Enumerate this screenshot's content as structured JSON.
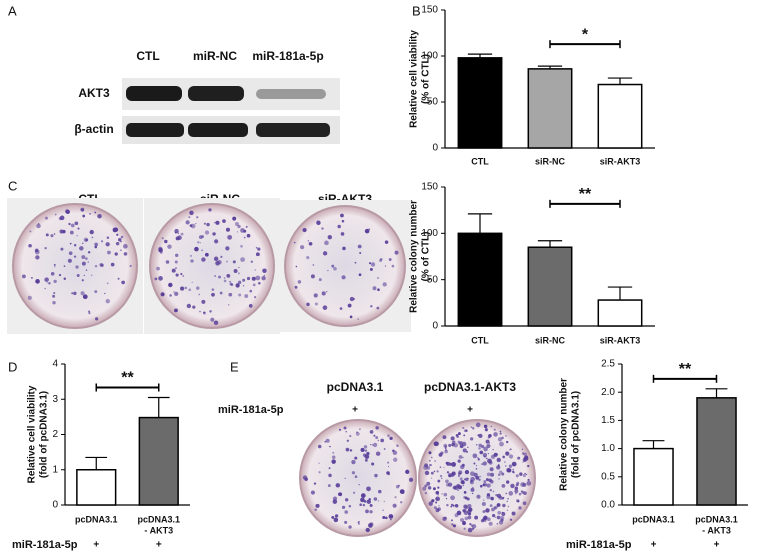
{
  "panel_labels": [
    "A",
    "B",
    "C",
    "D",
    "E"
  ],
  "blot": {
    "lanes": [
      "CTL",
      "miR-NC",
      "miR-181a-5p"
    ],
    "rows": [
      "AKT3",
      "β-actin"
    ]
  },
  "colony_c": {
    "labels": [
      "CTL",
      "siR-NC",
      "siR-AKT3"
    ]
  },
  "colony_e": {
    "labels": [
      "pcDNA3.1",
      "pcDNA3.1-AKT3"
    ],
    "treatment": "miR-181a-5p",
    "marks": [
      "+",
      "+"
    ]
  },
  "chart_data": [
    {
      "type": "bar",
      "ylabel": [
        "Relative cell viability",
        "(% of CTL)"
      ],
      "categories": [
        [
          "CTL"
        ],
        [
          "siR-NC"
        ],
        [
          "siR-AKT3"
        ]
      ],
      "values": [
        98,
        86,
        69
      ],
      "errors": [
        4,
        3,
        7
      ],
      "colors": [
        "#000000",
        "#a6a6a6",
        "#ffffff"
      ],
      "ylim": [
        0,
        150
      ],
      "yticks": [
        0,
        50,
        100,
        150
      ],
      "significance": {
        "between": [
          1,
          2
        ],
        "label": "*"
      }
    },
    {
      "type": "bar",
      "ylabel": [
        "Relative colony number",
        "(% of CTL)"
      ],
      "categories": [
        [
          "CTL"
        ],
        [
          "siR-NC"
        ],
        [
          "siR-AKT3"
        ]
      ],
      "values": [
        100,
        85,
        28
      ],
      "errors": [
        21,
        7,
        14
      ],
      "colors": [
        "#000000",
        "#6b6b6b",
        "#ffffff"
      ],
      "ylim": [
        0,
        150
      ],
      "yticks": [
        0,
        50,
        100,
        150
      ],
      "significance": {
        "between": [
          1,
          2
        ],
        "label": "**"
      }
    },
    {
      "type": "bar",
      "ylabel": [
        "Relative cell viability",
        "(fold of pcDNA3.1)"
      ],
      "categories": [
        [
          "pcDNA3.1"
        ],
        [
          "pcDNA3.1",
          "- AKT3"
        ]
      ],
      "values": [
        1.0,
        2.48
      ],
      "errors": [
        0.35,
        0.57
      ],
      "colors": [
        "#ffffff",
        "#6b6b6b"
      ],
      "ylim": [
        0,
        4
      ],
      "yticks": [
        0,
        1,
        2,
        3,
        4
      ],
      "significance": {
        "between": [
          0,
          1
        ],
        "label": "**"
      },
      "treatment": "miR-181a-5p",
      "treatment_marks": [
        "+",
        "+"
      ]
    },
    {
      "type": "bar",
      "ylabel": [
        "Relative colony number",
        "(fold of pcDNA3.1)"
      ],
      "categories": [
        [
          "pcDNA3.1"
        ],
        [
          "pcDNA3.1",
          "- AKT3"
        ]
      ],
      "values": [
        1.0,
        1.9
      ],
      "errors": [
        0.14,
        0.16
      ],
      "colors": [
        "#ffffff",
        "#6b6b6b"
      ],
      "ylim": [
        0,
        2.5
      ],
      "yticks": [
        {
          "value": 0,
          "label": "0.0"
        },
        0.5,
        {
          "value": 1,
          "label": "1.0"
        },
        1.5,
        {
          "value": 2,
          "label": "2.0"
        },
        2.5
      ],
      "significance": {
        "between": [
          0,
          1
        ],
        "label": "**"
      },
      "treatment": "miR-181a-5p",
      "treatment_marks": [
        "+",
        "+"
      ]
    }
  ]
}
